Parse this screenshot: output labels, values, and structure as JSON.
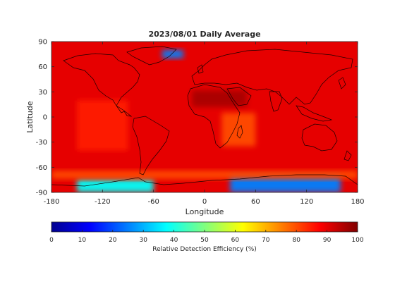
{
  "chart_data": {
    "type": "heatmap",
    "title": "2023/08/01 Daily Average",
    "xlabel": "Longitude",
    "ylabel": "Latitude",
    "xlim": [
      -180,
      180
    ],
    "ylim": [
      -90,
      90
    ],
    "x_ticks": [
      -180,
      -120,
      -60,
      0,
      60,
      120,
      180
    ],
    "y_ticks": [
      -90,
      -60,
      -30,
      0,
      30,
      60,
      90
    ],
    "colorbar": {
      "label": "Relative Detection Efficiency (%)",
      "colormap": "jet",
      "range": [
        0,
        100
      ],
      "ticks": [
        0,
        10,
        20,
        30,
        40,
        50,
        60,
        70,
        80,
        90,
        100
      ]
    },
    "background_value": 90,
    "features": [
      {
        "region": "Greenland interior",
        "lon": [
          -50,
          -25
        ],
        "lat": [
          70,
          80
        ],
        "value": 25
      },
      {
        "region": "Antarctica (West)",
        "lon": [
          -150,
          -60
        ],
        "lat": [
          -90,
          -74
        ],
        "value": 38
      },
      {
        "region": "Antarctica (East)",
        "lon": [
          30,
          160
        ],
        "lat": [
          -90,
          -70
        ],
        "value": 25
      },
      {
        "region": "Southern Ocean rim",
        "lon": [
          -180,
          180
        ],
        "lat": [
          -74,
          -64
        ],
        "value": 80
      },
      {
        "region": "Sahara / Arabia",
        "lon": [
          -15,
          50
        ],
        "lat": [
          12,
          32
        ],
        "value": 96
      },
      {
        "region": "Southern Africa / Indian Ocean",
        "lon": [
          20,
          60
        ],
        "lat": [
          -35,
          5
        ],
        "value": 80
      },
      {
        "region": "Eastern Pacific band",
        "lon": [
          -150,
          -90
        ],
        "lat": [
          -40,
          20
        ],
        "value": 85
      }
    ],
    "grid": false
  }
}
